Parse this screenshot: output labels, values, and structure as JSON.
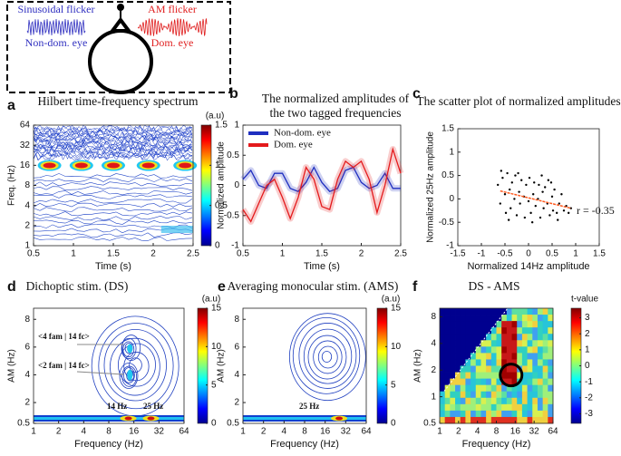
{
  "diagram": {
    "left_title": "Sinusoidal flicker",
    "left_eye": "Non-dom. eye",
    "right_title": "AM flicker",
    "right_eye": "Dom. eye"
  },
  "chart_data": [
    {
      "type": "contour",
      "panel": "a",
      "title": "Hilbert time-frequency spectrum",
      "xlabel": "Time (s)",
      "ylabel": "Freq. (Hz)",
      "xlim": [
        0.5,
        2.5
      ],
      "xticks": [
        0.5,
        1,
        1.5,
        2,
        2.5
      ],
      "ylim": [
        1,
        64
      ],
      "yticks": [
        1,
        2,
        4,
        8,
        16,
        32,
        64
      ],
      "yscale": "log",
      "clim": [
        0,
        1.5
      ],
      "cticks": [
        0,
        0.5,
        1,
        1.5
      ],
      "colorbar_label": "(a.u)"
    },
    {
      "type": "line",
      "panel": "b",
      "title": [
        "The normalized amplitudes of",
        "the two tagged frequencies"
      ],
      "xlabel": "Time (s)",
      "ylabel": "Normalized amplitude",
      "xlim": [
        0.5,
        2.5
      ],
      "xticks": [
        0.5,
        1,
        1.5,
        2,
        2.5
      ],
      "ylim": [
        -1,
        1
      ],
      "yticks": [
        -1,
        -0.5,
        0,
        0.5,
        1
      ],
      "x": [
        0.5,
        0.6,
        0.7,
        0.8,
        0.9,
        1.0,
        1.1,
        1.2,
        1.3,
        1.4,
        1.5,
        1.6,
        1.7,
        1.8,
        1.9,
        2.0,
        2.1,
        2.2,
        2.3,
        2.4,
        2.5
      ],
      "series": [
        {
          "name": "Non-dom. eye",
          "color": "#1f2fc0",
          "values": [
            0.1,
            0.25,
            0.0,
            -0.05,
            0.2,
            0.2,
            -0.05,
            -0.1,
            0.05,
            0.3,
            0.05,
            -0.1,
            -0.05,
            0.25,
            0.3,
            0.05,
            -0.05,
            0.0,
            0.2,
            -0.05,
            -0.05
          ]
        },
        {
          "name": "Dom. eye",
          "color": "#e41a1c",
          "values": [
            -0.4,
            -0.6,
            -0.3,
            0.0,
            0.1,
            -0.2,
            -0.55,
            -0.2,
            0.3,
            0.1,
            -0.35,
            -0.4,
            0.1,
            0.4,
            0.3,
            0.4,
            0.1,
            -0.45,
            0.0,
            0.6,
            0.2
          ]
        }
      ]
    },
    {
      "type": "scatter",
      "panel": "c",
      "title": "The scatter plot of normalized amplitudes",
      "xlabel": "Normalized 14Hz amplitude",
      "ylabel": "Normalized 25Hz amplitude",
      "xlim": [
        -1.5,
        1.5
      ],
      "xticks": [
        -1.5,
        -1,
        -0.5,
        0,
        0.5,
        1,
        1.5
      ],
      "ylim": [
        -1,
        1.5
      ],
      "yticks": [
        -1,
        -0.5,
        0,
        0.5,
        1,
        1.5
      ],
      "annotations": [
        "r = -0.35"
      ],
      "points": {
        "color": "#000000",
        "x": [
          -0.65,
          -0.6,
          -0.55,
          -0.5,
          -0.48,
          -0.45,
          -0.4,
          -0.38,
          -0.35,
          -0.3,
          -0.28,
          -0.25,
          -0.2,
          -0.18,
          -0.15,
          -0.1,
          -0.08,
          -0.05,
          0,
          0.02,
          0.05,
          0.1,
          0.12,
          0.15,
          0.2,
          0.22,
          0.25,
          0.3,
          0.32,
          0.35,
          0.4,
          0.42,
          0.45,
          0.5,
          0.52,
          0.55,
          0.6,
          0.65,
          0.7,
          0.75,
          0.8,
          0.85,
          0.9,
          -0.58,
          -0.42,
          -0.22,
          0.08,
          0.28,
          0.48,
          0.62
        ],
        "y": [
          0.3,
          -0.1,
          0.45,
          0.1,
          -0.3,
          0.55,
          0.2,
          -0.2,
          0.35,
          0.0,
          0.5,
          -0.35,
          0.15,
          -0.1,
          0.4,
          0.05,
          -0.4,
          0.3,
          -0.05,
          0.45,
          -0.3,
          0.1,
          0.35,
          -0.15,
          0.0,
          0.3,
          -0.4,
          0.15,
          -0.2,
          0.25,
          -0.1,
          0.4,
          -0.35,
          0.05,
          -0.25,
          0.2,
          -0.3,
          -0.1,
          0.1,
          -0.25,
          -0.15,
          -0.3,
          -0.2,
          0.6,
          -0.45,
          0.55,
          -0.5,
          0.5,
          0.35,
          -0.45
        ]
      },
      "fit": {
        "color": "#ff5a1f",
        "x": [
          -0.6,
          0.9
        ],
        "y": [
          0.17,
          -0.2
        ]
      }
    },
    {
      "type": "contour",
      "panel": "d",
      "title": "Dichoptic stim. (DS)",
      "xlabel": "Frequency (Hz)",
      "ylabel": "AM (Hz)",
      "xlim": [
        1,
        64
      ],
      "xticks": [
        1,
        2,
        4,
        8,
        16,
        32,
        64
      ],
      "xscale": "log",
      "ylim": [
        0.5,
        8.8
      ],
      "yticks": [
        0.5,
        2,
        4,
        6,
        8
      ],
      "clim": [
        0,
        15
      ],
      "cticks": [
        0,
        5,
        10,
        15
      ],
      "colorbar_label": "(a.u)",
      "annotations": [
        "<4 fam | 14 fc>",
        "<2 fam | 14 fc>",
        "14 Hz",
        "25 Hz"
      ]
    },
    {
      "type": "contour",
      "panel": "e",
      "title": "Averaging monocular stim. (AMS)",
      "xlabel": "Frequency (Hz)",
      "ylabel": "AM (Hz)",
      "xlim": [
        1,
        64
      ],
      "xticks": [
        1,
        2,
        4,
        8,
        16,
        32,
        64
      ],
      "xscale": "log",
      "ylim": [
        0.5,
        8.8
      ],
      "yticks": [
        0.5,
        2,
        4,
        6,
        8
      ],
      "clim": [
        0,
        15
      ],
      "cticks": [
        0,
        5,
        10,
        15
      ],
      "colorbar_label": "(a.u)",
      "annotations": [
        "25 Hz"
      ]
    },
    {
      "type": "contour",
      "panel": "f",
      "title": "DS - AMS",
      "xlabel": "Frequency (Hz)",
      "ylabel": "AM (Hz)",
      "xlim": [
        1,
        64
      ],
      "xticks": [
        1,
        2,
        4,
        8,
        16,
        32,
        64
      ],
      "xscale": "log",
      "ylim": [
        0.5,
        10
      ],
      "yticks": [
        0.5,
        1,
        2,
        4,
        8
      ],
      "yscale": "log",
      "clim": [
        -3.6,
        3.6
      ],
      "cticks": [
        -3,
        -2,
        -1,
        0,
        1,
        2,
        3
      ],
      "colorbar_label": "t-value"
    }
  ]
}
